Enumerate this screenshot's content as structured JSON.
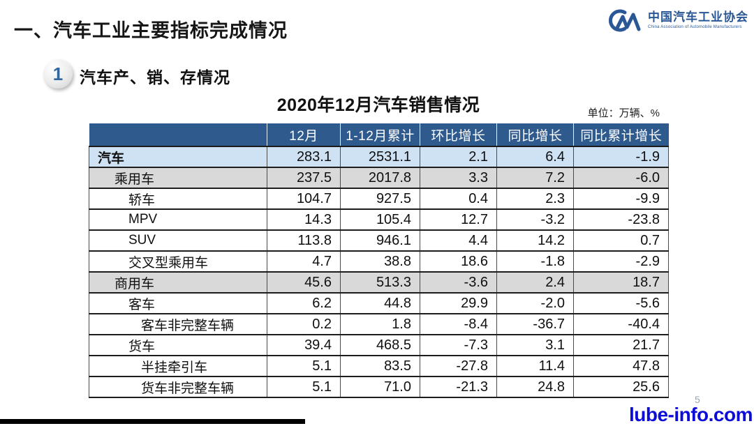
{
  "page": {
    "title": "一、汽车工业主要指标完成情况",
    "section_number": "1",
    "section_title": "汽车产、销、存情况",
    "page_number": "5",
    "watermark": "lube-info.com"
  },
  "logo": {
    "mark": "CM-monogram",
    "name_cn": "中国汽车工业协会",
    "name_en": "China Association of Automobile Manufacturers"
  },
  "table": {
    "title": "2020年12月汽车销售情况",
    "unit_label": "单位：万辆、%",
    "headers": [
      "",
      "12月",
      "1-12月累计",
      "环比增长",
      "同比增长",
      "同比累计增长"
    ],
    "rows": [
      {
        "label": "汽车",
        "indent": 0,
        "style": "blue",
        "values": [
          "283.1",
          "2531.1",
          "2.1",
          "6.4",
          "-1.9"
        ]
      },
      {
        "label": "乘用车",
        "indent": 1,
        "style": "gray",
        "values": [
          "237.5",
          "2017.8",
          "3.3",
          "7.2",
          "-6.0"
        ]
      },
      {
        "label": "轿车",
        "indent": 2,
        "style": "white",
        "values": [
          "104.7",
          "927.5",
          "0.4",
          "2.3",
          "-9.9"
        ]
      },
      {
        "label": "MPV",
        "indent": 2,
        "style": "white",
        "values": [
          "14.3",
          "105.4",
          "12.7",
          "-3.2",
          "-23.8"
        ]
      },
      {
        "label": "SUV",
        "indent": 2,
        "style": "white",
        "values": [
          "113.8",
          "946.1",
          "4.4",
          "14.2",
          "0.7"
        ]
      },
      {
        "label": "交叉型乘用车",
        "indent": 2,
        "style": "white",
        "values": [
          "4.7",
          "38.8",
          "18.6",
          "-1.8",
          "-2.9"
        ]
      },
      {
        "label": "商用车",
        "indent": 1,
        "style": "gray",
        "values": [
          "45.6",
          "513.3",
          "-3.6",
          "2.4",
          "18.7"
        ]
      },
      {
        "label": "客车",
        "indent": 2,
        "style": "white",
        "values": [
          "6.2",
          "44.8",
          "29.9",
          "-2.0",
          "-5.6"
        ]
      },
      {
        "label": "客车非完整车辆",
        "indent": 3,
        "style": "white",
        "values": [
          "0.2",
          "1.8",
          "-8.4",
          "-36.7",
          "-40.4"
        ]
      },
      {
        "label": "货车",
        "indent": 2,
        "style": "white",
        "values": [
          "39.4",
          "468.5",
          "-7.3",
          "3.1",
          "21.7"
        ]
      },
      {
        "label": "半挂牵引车",
        "indent": 3,
        "style": "white",
        "values": [
          "5.1",
          "83.5",
          "-27.8",
          "11.4",
          "47.8"
        ]
      },
      {
        "label": "货车非完整车辆",
        "indent": 3,
        "style": "white",
        "values": [
          "5.1",
          "71.0",
          "-21.3",
          "24.8",
          "25.6"
        ]
      }
    ]
  },
  "colors": {
    "header_bg": "#2e5a8e",
    "row_highlight_blue": "#cfe2f3",
    "row_highlight_gray": "#d9d9d9",
    "logo_blue": "#2a5795",
    "watermark_blue": "#0d0dd8"
  }
}
